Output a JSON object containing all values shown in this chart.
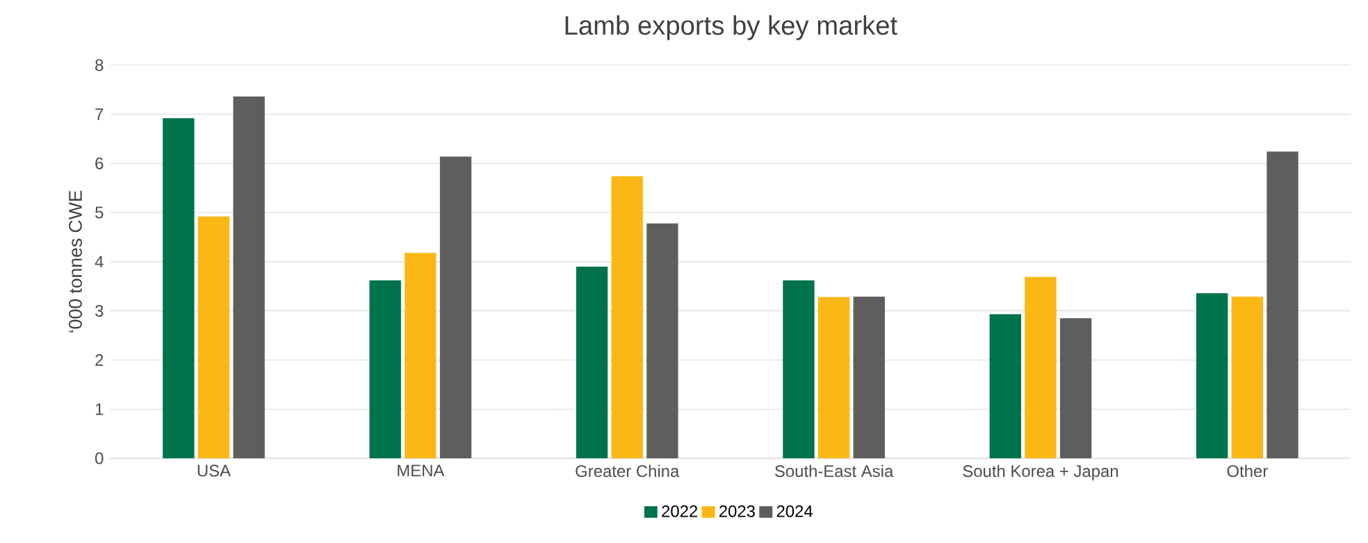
{
  "chart_data": {
    "type": "bar",
    "title": "Lamb exports by key market",
    "ylabel": "‘000 tonnes CWE",
    "categories": [
      "USA",
      "MENA",
      "Greater China",
      "South-East Asia",
      "South Korea + Japan",
      "Other"
    ],
    "series": [
      {
        "name": "2022",
        "color": "#00734a",
        "values": [
          6.92,
          3.62,
          3.9,
          3.62,
          2.93,
          3.36
        ]
      },
      {
        "name": "2023",
        "color": "#fbb714",
        "values": [
          4.92,
          4.18,
          5.74,
          3.28,
          3.69,
          3.29
        ]
      },
      {
        "name": "2024",
        "color": "#5e5e5e",
        "values": [
          7.36,
          6.14,
          4.78,
          3.29,
          2.85,
          6.24
        ]
      }
    ],
    "ylim": [
      0,
      8
    ],
    "yticks": [
      0,
      1,
      2,
      3,
      4,
      5,
      6,
      7,
      8
    ],
    "grid": "y",
    "legend": "bottom"
  }
}
